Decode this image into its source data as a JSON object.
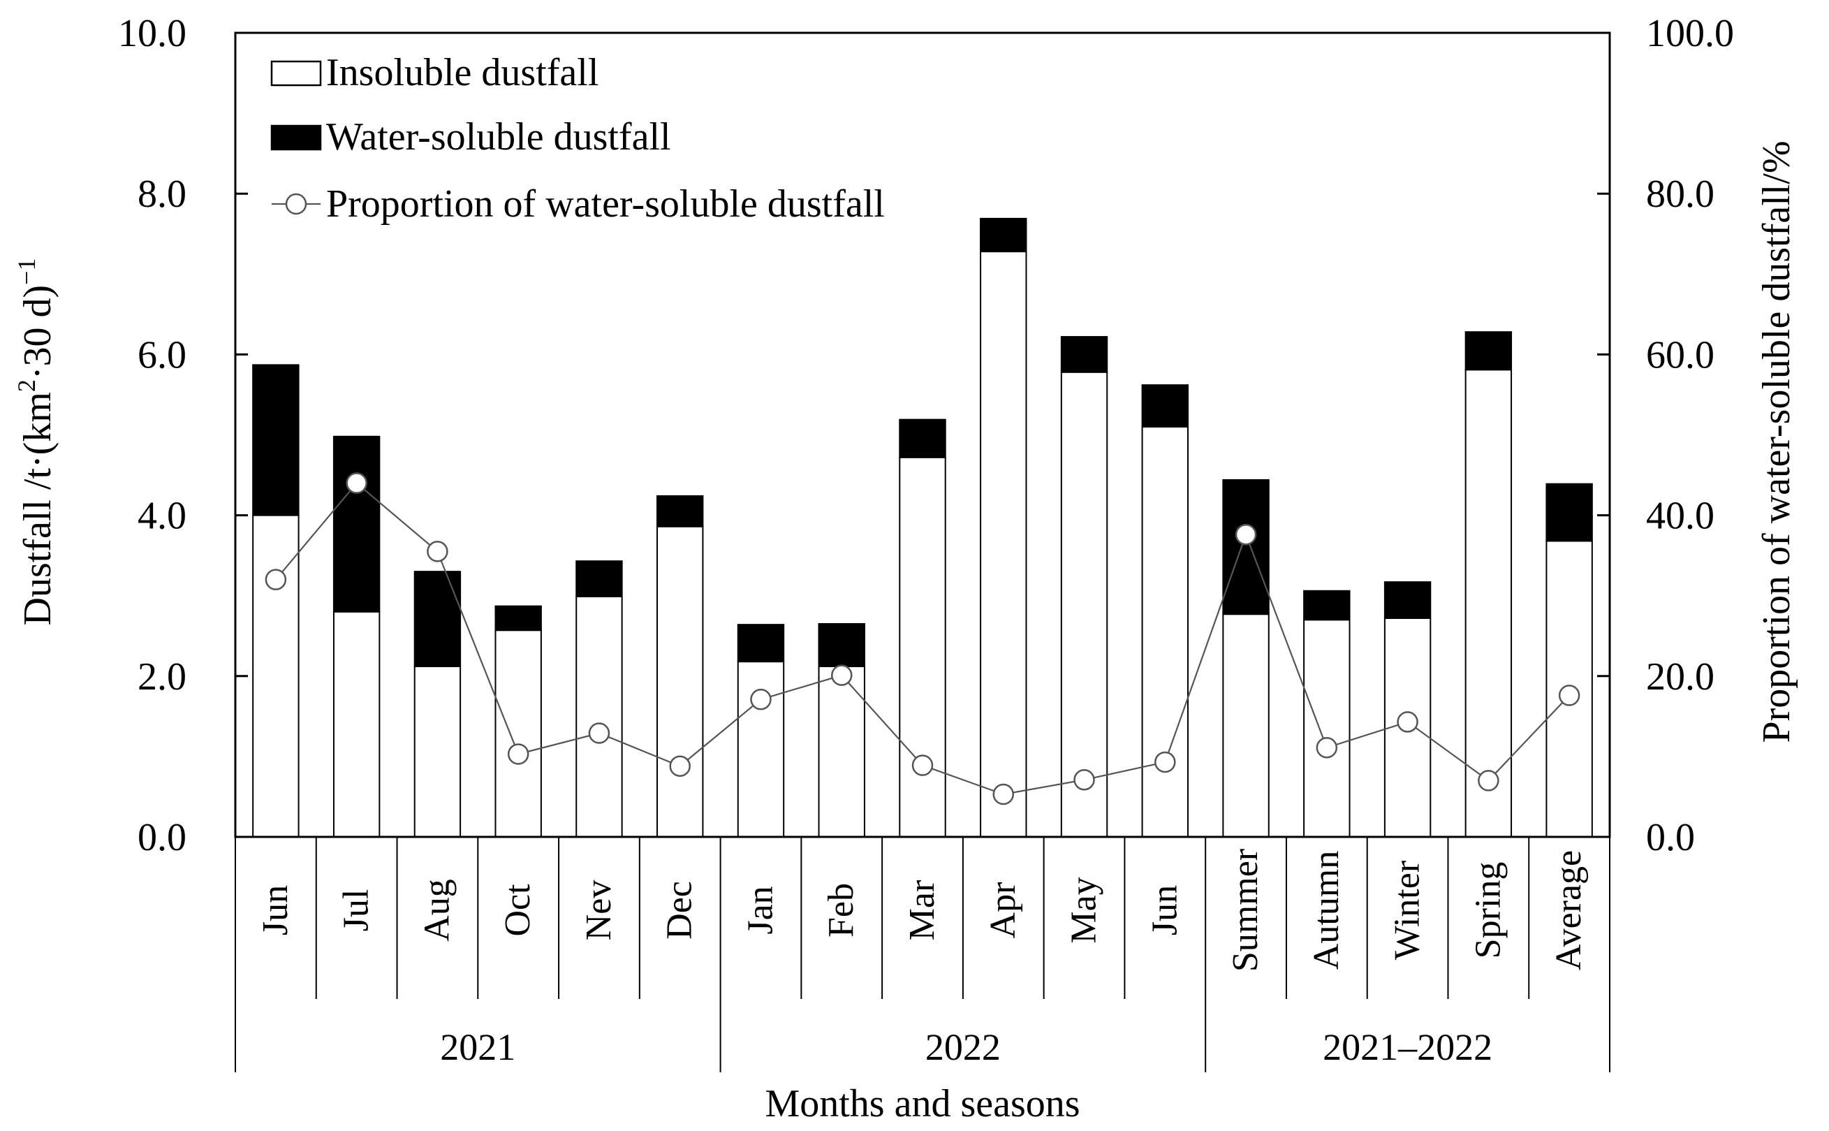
{
  "chart_data": {
    "type": "bar",
    "stacked": true,
    "xlabel": "Months and seasons",
    "ylabel": "Dustfall /t·(km²·30 d)⁻¹",
    "ylabel_parts": {
      "main": "Dustfall /t·(km",
      "sup1": "2",
      "mid": "·30 d)",
      "sup2": "−1"
    },
    "y2label": "Proportion of water-soluble dustfall/%",
    "ylim": [
      0,
      10
    ],
    "y2lim": [
      0,
      100
    ],
    "yticks": [
      "0.0",
      "2.0",
      "4.0",
      "6.0",
      "8.0",
      "10.0"
    ],
    "y2ticks": [
      "0.0",
      "20.0",
      "40.0",
      "60.0",
      "80.0",
      "100.0"
    ],
    "categories": [
      "Jun",
      "Jul",
      "Aug",
      "Oct",
      "Nev",
      "Dec",
      "Jan",
      "Feb",
      "Mar",
      "Apr",
      "May",
      "Jun",
      "Summer",
      "Autumn",
      "Winter",
      "Spring",
      "Average"
    ],
    "groups": [
      {
        "label": "2021",
        "start": 0,
        "end": 5
      },
      {
        "label": "2022",
        "start": 6,
        "end": 11
      },
      {
        "label": "2021–2022",
        "start": 12,
        "end": 16
      }
    ],
    "series": [
      {
        "name": "Insoluble dustfall",
        "kind": "bar",
        "color": "#ffffff",
        "values": [
          4.0,
          2.8,
          2.12,
          2.57,
          2.99,
          3.86,
          2.18,
          2.12,
          4.72,
          7.28,
          5.78,
          5.1,
          2.77,
          2.7,
          2.72,
          5.81,
          3.68
        ]
      },
      {
        "name": "Water-soluble dustfall",
        "kind": "bar",
        "color": "#000000",
        "values": [
          1.87,
          2.18,
          1.18,
          0.3,
          0.44,
          0.38,
          0.46,
          0.53,
          0.47,
          0.41,
          0.44,
          0.52,
          1.67,
          0.36,
          0.45,
          0.47,
          0.71
        ]
      },
      {
        "name": "Proportion of water-soluble dustfall",
        "kind": "line",
        "axis": "right",
        "color": "#555555",
        "values": [
          32.0,
          44.0,
          35.5,
          10.3,
          12.9,
          8.8,
          17.1,
          20.1,
          8.9,
          5.3,
          7.1,
          9.3,
          37.6,
          11.1,
          14.3,
          7.0,
          17.6
        ]
      }
    ],
    "legend_position": "top-left"
  }
}
